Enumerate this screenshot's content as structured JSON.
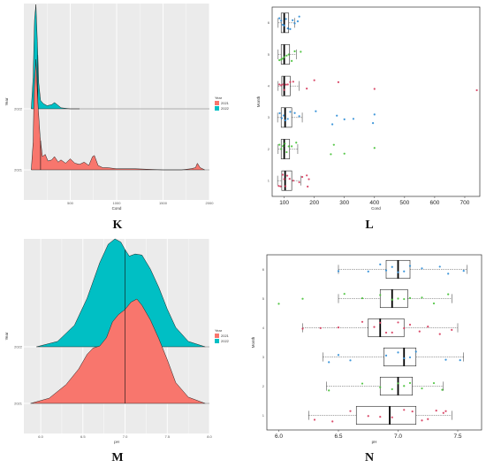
{
  "panel_labels": [
    "K",
    "L",
    "M",
    "N"
  ],
  "colors": {
    "y2021": "#f8766d",
    "y2022": "#00bfc4",
    "panel_bg": "#ebebeb",
    "grid": "#ffffff",
    "m_blue": "#2b8cd6",
    "m_green": "#45c135",
    "m_red": "#d63a5c"
  },
  "chart_data": [
    {
      "id": "K",
      "type": "area",
      "xlabel": "Cond",
      "ylabel": "Year",
      "xlim": [
        0,
        2000
      ],
      "xticks": [
        "500",
        "1000",
        "1500",
        "2000"
      ],
      "ytick_labels": [
        "2021",
        "2022"
      ],
      "legend": {
        "title": "Year",
        "entries": [
          "2021",
          "2022"
        ],
        "position": "right"
      },
      "series": [
        {
          "name": "2021",
          "median": 180,
          "x": [
            80,
            100,
            110,
            130,
            150,
            175,
            200,
            230,
            260,
            300,
            330,
            370,
            400,
            450,
            500,
            550,
            600,
            650,
            700,
            740,
            760,
            800,
            850,
            900,
            1000,
            1200,
            1500,
            1700,
            1800,
            1850,
            1870,
            1900,
            1950
          ],
          "density": [
            0,
            0.25,
            0.7,
            1.0,
            0.62,
            0.3,
            0.12,
            0.14,
            0.08,
            0.09,
            0.12,
            0.07,
            0.09,
            0.06,
            0.1,
            0.06,
            0.05,
            0.07,
            0.04,
            0.12,
            0.13,
            0.04,
            0.02,
            0.02,
            0.01,
            0.01,
            0.0,
            0.0,
            0.01,
            0.02,
            0.06,
            0.02,
            0.0
          ]
        },
        {
          "name": "2022",
          "median": 150,
          "x": [
            80,
            100,
            115,
            130,
            145,
            160,
            180,
            210,
            250,
            300,
            330,
            360,
            400,
            500,
            600
          ],
          "density": [
            0,
            0.3,
            0.85,
            1.0,
            0.65,
            0.25,
            0.08,
            0.05,
            0.03,
            0.04,
            0.06,
            0.04,
            0.01,
            0,
            0
          ]
        }
      ]
    },
    {
      "id": "L",
      "type": "boxplot",
      "xlabel": "Cond",
      "ylabel": "Month",
      "xlim": [
        60,
        750
      ],
      "xticks": [
        100,
        200,
        300,
        400,
        500,
        600,
        700
      ],
      "categories": [
        "1",
        "2",
        "3",
        "4",
        "5",
        "6"
      ],
      "series": [
        {
          "category": "1",
          "color": "red",
          "q1": 92,
          "median": 103,
          "q3": 125,
          "whisker_low": 78,
          "whisker_high": 155,
          "points": [
            82,
            88,
            95,
            100,
            104,
            110,
            118,
            130,
            150,
            160,
            175,
            178,
            182
          ]
        },
        {
          "category": "2",
          "color": "green",
          "q1": 90,
          "median": 100,
          "q3": 118,
          "whisker_low": 80,
          "whisker_high": 145,
          "points": [
            84,
            90,
            96,
            102,
            108,
            115,
            125,
            140,
            255,
            265,
            300,
            400
          ]
        },
        {
          "category": "3",
          "color": "blue",
          "q1": 90,
          "median": 103,
          "q3": 125,
          "whisker_low": 78,
          "whisker_high": 160,
          "points": [
            85,
            92,
            98,
            104,
            112,
            120,
            135,
            150,
            205,
            260,
            275,
            300,
            330,
            395,
            400
          ]
        },
        {
          "category": "4",
          "color": "red",
          "q1": 92,
          "median": 100,
          "q3": 120,
          "whisker_low": 80,
          "whisker_high": 150,
          "points": [
            84,
            90,
            96,
            100,
            106,
            112,
            120,
            130,
            175,
            200,
            280,
            400,
            740
          ]
        },
        {
          "category": "5",
          "color": "green",
          "q1": 90,
          "median": 100,
          "q3": 118,
          "whisker_low": 80,
          "whisker_high": 140,
          "points": [
            84,
            90,
            95,
            100,
            108,
            115,
            125,
            135,
            155
          ]
        },
        {
          "category": "6",
          "color": "blue",
          "q1": 90,
          "median": 100,
          "q3": 115,
          "whisker_low": 80,
          "whisker_high": 135,
          "points": [
            84,
            90,
            95,
            100,
            106,
            112,
            120,
            128,
            135,
            145,
            150
          ]
        }
      ]
    },
    {
      "id": "M",
      "type": "area",
      "xlabel": "pH",
      "ylabel": "Year",
      "xlim": [
        5.8,
        8.0
      ],
      "xticks": [
        "6.0",
        "6.5",
        "7.0",
        "7.5",
        "8.0"
      ],
      "ytick_labels": [
        "2021",
        "2022"
      ],
      "legend": {
        "title": "Year",
        "entries": [
          "2021",
          "2022"
        ],
        "position": "right"
      },
      "series": [
        {
          "name": "2021",
          "median": 7.0,
          "x": [
            5.88,
            6.1,
            6.3,
            6.45,
            6.55,
            6.62,
            6.7,
            6.78,
            6.85,
            6.92,
            7.0,
            7.07,
            7.14,
            7.2,
            7.3,
            7.4,
            7.5,
            7.6,
            7.75,
            7.95
          ],
          "density": [
            0,
            0.05,
            0.18,
            0.33,
            0.47,
            0.53,
            0.55,
            0.63,
            0.78,
            0.85,
            0.9,
            0.97,
            1.0,
            0.94,
            0.8,
            0.62,
            0.42,
            0.2,
            0.06,
            0
          ]
        },
        {
          "name": "2022",
          "median": 7.0,
          "x": [
            5.95,
            6.2,
            6.4,
            6.55,
            6.7,
            6.8,
            6.88,
            6.95,
            7.0,
            7.05,
            7.12,
            7.2,
            7.3,
            7.4,
            7.5,
            7.6,
            7.75,
            7.95
          ],
          "density": [
            0,
            0.05,
            0.2,
            0.45,
            0.78,
            0.95,
            1.0,
            0.97,
            0.9,
            0.84,
            0.86,
            0.85,
            0.72,
            0.55,
            0.35,
            0.18,
            0.05,
            0
          ]
        }
      ]
    },
    {
      "id": "N",
      "type": "boxplot",
      "xlabel": "pH",
      "ylabel": "Month",
      "xlim": [
        5.9,
        7.7
      ],
      "xticks": [
        "6.0",
        "6.5",
        "7.0",
        "7.5"
      ],
      "categories": [
        "1",
        "2",
        "3",
        "4",
        "5",
        "6"
      ],
      "series": [
        {
          "category": "1",
          "color": "red",
          "q1": 6.65,
          "median": 6.93,
          "q3": 7.15,
          "whisker_low": 6.25,
          "whisker_high": 7.45,
          "points": [
            6.3,
            6.45,
            6.6,
            6.75,
            6.85,
            6.95,
            7.05,
            7.12,
            7.2,
            7.25,
            7.32,
            7.38,
            7.4
          ]
        },
        {
          "category": "2",
          "color": "green",
          "q1": 6.85,
          "median": 7.0,
          "q3": 7.12,
          "whisker_low": 6.4,
          "whisker_high": 7.38,
          "points": [
            6.42,
            6.7,
            6.85,
            6.95,
            7.0,
            7.05,
            7.1,
            7.2,
            7.3,
            7.37
          ]
        },
        {
          "category": "3",
          "color": "blue",
          "q1": 6.88,
          "median": 7.05,
          "q3": 7.15,
          "whisker_low": 6.37,
          "whisker_high": 7.55,
          "points": [
            6.42,
            6.5,
            6.6,
            6.9,
            7.0,
            7.05,
            7.1,
            7.15,
            7.4,
            7.52
          ]
        },
        {
          "category": "4",
          "color": "red",
          "q1": 6.75,
          "median": 6.85,
          "q3": 7.05,
          "whisker_low": 6.2,
          "whisker_high": 7.5,
          "points": [
            6.2,
            6.35,
            6.5,
            6.7,
            6.8,
            6.85,
            6.9,
            6.95,
            7.0,
            7.05,
            7.1,
            7.18,
            7.25,
            7.35,
            7.45
          ]
        },
        {
          "category": "5",
          "color": "green",
          "q1": 6.85,
          "median": 6.95,
          "q3": 7.08,
          "whisker_low": 6.5,
          "whisker_high": 7.45,
          "points": [
            6.0,
            6.2,
            6.55,
            6.7,
            6.85,
            6.95,
            7.0,
            7.05,
            7.1,
            7.2,
            7.3,
            7.42
          ]
        },
        {
          "category": "6",
          "color": "blue",
          "q1": 6.9,
          "median": 7.0,
          "q3": 7.1,
          "whisker_low": 6.5,
          "whisker_high": 7.58,
          "points": [
            6.5,
            6.75,
            6.85,
            6.9,
            6.95,
            7.0,
            7.05,
            7.1,
            7.2,
            7.35,
            7.42,
            7.55
          ]
        }
      ]
    }
  ]
}
